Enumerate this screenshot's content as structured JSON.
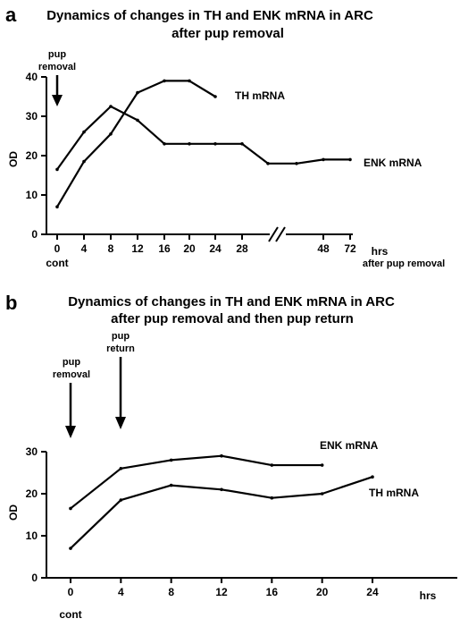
{
  "chart_data": [
    {
      "panel": "a",
      "type": "line",
      "title_lines": [
        "Dynamics of changes in TH and ENK mRNA in ARC",
        "after pup removal"
      ],
      "ylabel": "OD",
      "xlabel": "hrs",
      "xlabel2": "after pup removal",
      "ylim": [
        0,
        40
      ],
      "yticks": [
        "0",
        "10",
        "20",
        "30",
        "40"
      ],
      "xticks": [
        "0",
        "4",
        "8",
        "12",
        "16",
        "20",
        "24",
        "28",
        "48",
        "72"
      ],
      "x_extra_label": "cont",
      "axis_break": "between 28 and 48",
      "annotation_lines": [
        "pup",
        "removal"
      ],
      "series": [
        {
          "name": "TH mRNA",
          "points": [
            [
              0,
              7
            ],
            [
              4,
              18.5
            ],
            [
              8,
              25.5
            ],
            [
              12,
              36
            ],
            [
              16,
              39
            ],
            [
              20,
              39
            ],
            [
              24,
              35
            ]
          ]
        },
        {
          "name": "ENK mRNA",
          "points": [
            [
              0,
              16.5
            ],
            [
              4,
              26
            ],
            [
              8,
              32.5
            ],
            [
              12,
              29
            ],
            [
              16,
              23
            ],
            [
              20,
              23
            ],
            [
              24,
              23
            ],
            [
              28,
              23
            ],
            [
              36,
              18
            ],
            [
              40,
              18
            ],
            [
              48,
              19
            ],
            [
              72,
              19
            ]
          ]
        }
      ]
    },
    {
      "panel": "b",
      "type": "line",
      "title_lines": [
        "Dynamics of changes in TH and ENK mRNA in ARC",
        "after pup removal and then pup return"
      ],
      "ylabel": "OD",
      "xlabel": "hrs",
      "ylim": [
        0,
        30
      ],
      "yticks": [
        "0",
        "10",
        "20",
        "30"
      ],
      "xticks": [
        "0",
        "4",
        "8",
        "12",
        "16",
        "20",
        "24"
      ],
      "x_extra_label": "cont",
      "annotations": [
        {
          "lines": [
            "pup",
            "removal"
          ],
          "x": 0
        },
        {
          "lines": [
            "pup",
            "return"
          ],
          "x": 4
        }
      ],
      "series": [
        {
          "name": "ENK mRNA",
          "points": [
            [
              0,
              16.5
            ],
            [
              4,
              26
            ],
            [
              8,
              28
            ],
            [
              12,
              29
            ],
            [
              16,
              26.8
            ],
            [
              20,
              26.8
            ]
          ]
        },
        {
          "name": "TH mRNA",
          "points": [
            [
              0,
              7
            ],
            [
              4,
              18.5
            ],
            [
              8,
              22
            ],
            [
              12,
              21
            ],
            [
              16,
              19
            ],
            [
              20,
              20
            ],
            [
              24,
              24
            ]
          ]
        }
      ]
    }
  ]
}
